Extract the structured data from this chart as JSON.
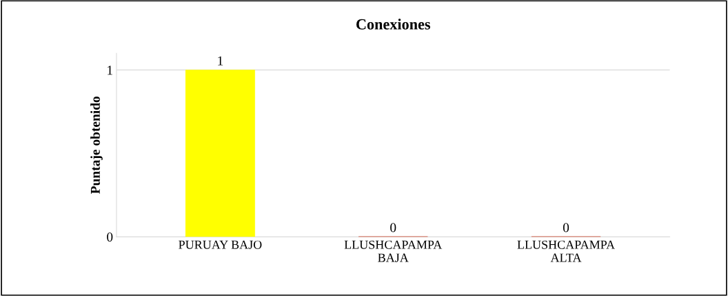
{
  "chart_data": {
    "type": "bar",
    "title": "Conexiones",
    "ylabel": "Puntaje obtenido",
    "categories": [
      "PURUAY BAJO",
      "LLUSHCAPAMPA BAJA",
      "LLUSHCAPAMPA ALTA"
    ],
    "values": [
      1,
      0,
      0
    ],
    "colors": [
      "#ffff00",
      "#cc2200",
      "#cc2200"
    ],
    "ylim": [
      0,
      1.1
    ],
    "yticks": [
      0,
      1
    ],
    "grid": "y",
    "data_labels": true
  }
}
